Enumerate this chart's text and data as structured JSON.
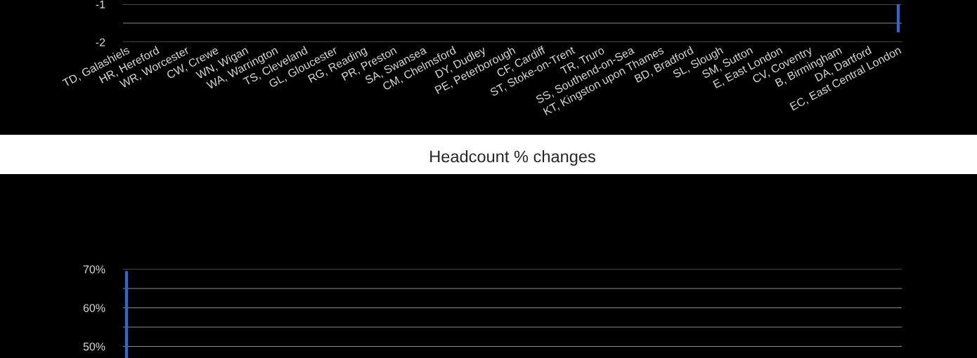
{
  "chart_data": [
    {
      "type": "bar",
      "categories": [
        "TD, Galashiels",
        "HR, Hereford",
        "WR, Worcester",
        "CW, Crewe",
        "WN, Wigan",
        "WA, Warrington",
        "TS, Cleveland",
        "GL, Gloucester",
        "RG, Reading",
        "PR, Preston",
        "SA, Swansea",
        "CM, Chelmsford",
        "DY, Dudley",
        "PE, Peterborough",
        "CF, Cardiff",
        "ST, Stoke-on-Trent",
        "TR, Truro",
        "SS, Southend-on-Sea",
        "KT, Kingston upon Thames",
        "BD, Bradford",
        "SL, Slough",
        "SM, Sutton",
        "E, East London",
        "CV, Coventry",
        "B, Birmingham",
        "DA, Dartford",
        "EC, East Central London"
      ],
      "values": [
        null,
        null,
        null,
        null,
        null,
        null,
        null,
        null,
        null,
        null,
        null,
        null,
        null,
        null,
        null,
        null,
        null,
        null,
        null,
        null,
        null,
        null,
        null,
        null,
        null,
        null,
        -1.74
      ],
      "color": "#3366cc",
      "ylim": [
        -2,
        -1
      ],
      "yticks": [
        {
          "value": -2,
          "label": "-2"
        },
        {
          "value": -1.5,
          "label": null
        },
        {
          "value": -1,
          "label": "-1"
        }
      ],
      "grid": "y"
    },
    {
      "type": "bar",
      "title": "Headcount % changes",
      "categories": [
        null,
        null,
        null,
        null,
        null,
        null,
        null,
        null,
        null,
        null,
        null,
        null,
        null,
        null,
        null,
        null,
        null,
        null,
        null,
        null,
        null,
        null,
        null,
        null,
        null,
        null,
        null
      ],
      "values": [
        69.5,
        null,
        null,
        null,
        null,
        null,
        null,
        null,
        null,
        null,
        null,
        null,
        null,
        null,
        null,
        null,
        null,
        null,
        null,
        null,
        null,
        null,
        null,
        null,
        null,
        null,
        null
      ],
      "color": "#3366cc",
      "ylim": [
        47,
        70
      ],
      "yticks": [
        {
          "value": 50,
          "label": "50%"
        },
        {
          "value": 55,
          "label": null
        },
        {
          "value": 60,
          "label": "60%"
        },
        {
          "value": 65,
          "label": null
        },
        {
          "value": 70,
          "label": "70%"
        }
      ],
      "grid": "y",
      "tick_labels": "y"
    }
  ]
}
